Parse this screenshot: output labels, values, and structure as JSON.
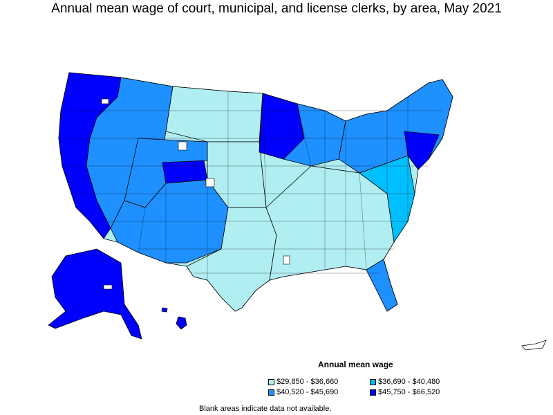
{
  "title": "Annual mean wage of court, municipal, and license clerks, by area, May 2021",
  "legend": {
    "title": "Annual mean wage",
    "items": [
      {
        "label": "$29,850 - $36,660",
        "color": "#b0eef2"
      },
      {
        "label": "$36,690 - $40,480",
        "color": "#00bfff"
      },
      {
        "label": "$40,520 - $45,690",
        "color": "#1e90ff"
      },
      {
        "label": "$45,750 - $66,520",
        "color": "#0000ff"
      }
    ]
  },
  "footnote": "Blank areas indicate data not available.",
  "colors": {
    "bin1": "#b0eef2",
    "bin2": "#00bfff",
    "bin3": "#1e90ff",
    "bin4": "#0000ff",
    "border": "#000000"
  }
}
